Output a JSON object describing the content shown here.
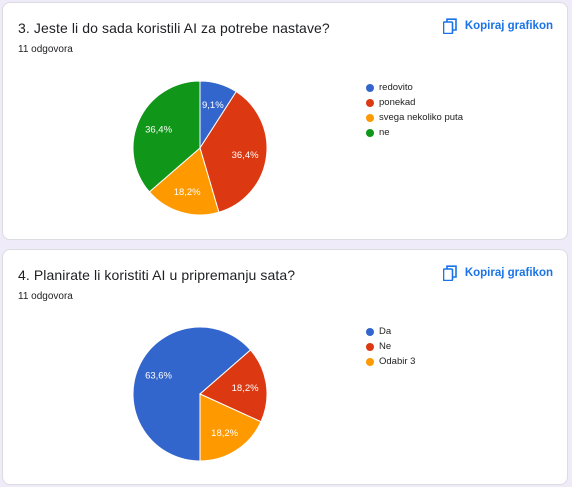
{
  "questions": [
    {
      "title": "3. Jeste li do sada koristili AI za potrebe nastave?",
      "count": "11 odgovora",
      "copy_label": "Kopiraj grafikon",
      "copy_icon": "copy-icon",
      "chart_data": {
        "type": "pie",
        "title": "",
        "slices": [
          {
            "label": "redovito",
            "value": 9.1,
            "display": "9,1%",
            "color": "#3366cc"
          },
          {
            "label": "ponekad",
            "value": 36.4,
            "display": "36,4%",
            "color": "#dc3912"
          },
          {
            "label": "svega nekoliko puta",
            "value": 18.2,
            "display": "18,2%",
            "color": "#ff9900"
          },
          {
            "label": "ne",
            "value": 36.4,
            "display": "36,4%",
            "color": "#109618"
          }
        ],
        "legend_position": "right"
      }
    },
    {
      "title": "4. Planirate li koristiti AI u pripremanju sata?",
      "count": "11 odgovora",
      "copy_label": "Kopiraj grafikon",
      "copy_icon": "copy-icon",
      "chart_data": {
        "type": "pie",
        "title": "",
        "slices": [
          {
            "label": "Da",
            "value": 63.6,
            "display": "63,6%",
            "color": "#3366cc"
          },
          {
            "label": "Ne",
            "value": 18.2,
            "display": "18,2%",
            "color": "#dc3912"
          },
          {
            "label": "Odabir 3",
            "value": 18.2,
            "display": "18,2%",
            "color": "#ff9900"
          }
        ],
        "legend_position": "right"
      }
    }
  ]
}
